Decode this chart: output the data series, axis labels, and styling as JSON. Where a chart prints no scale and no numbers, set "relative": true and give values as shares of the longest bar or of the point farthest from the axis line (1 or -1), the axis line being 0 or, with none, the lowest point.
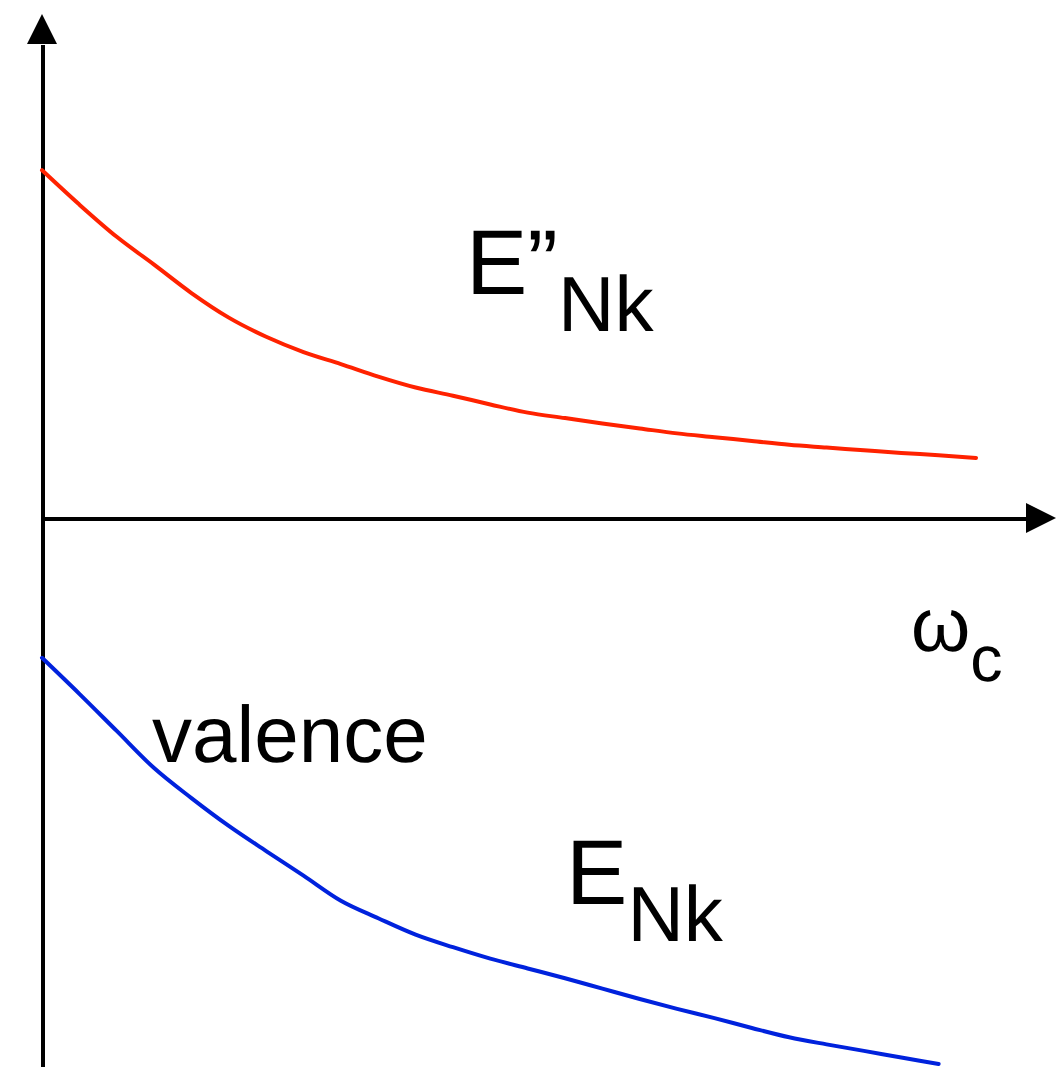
{
  "chart_data": {
    "type": "line",
    "relative": true,
    "xlabel": "ω$_{c}$",
    "categories": [
      null,
      null,
      null,
      null,
      null,
      null,
      null,
      null,
      null,
      null,
      null,
      null,
      null,
      null,
      null,
      null,
      null,
      null,
      null,
      null,
      null,
      null,
      null,
      null,
      null,
      null
    ],
    "series": [
      {
        "name": "E”$_{Nk}$",
        "color": "#ff2200",
        "values": [
          0.637,
          0.574,
          0.515,
          0.464,
          0.412,
          0.367,
          0.332,
          0.304,
          0.282,
          0.259,
          0.239,
          0.224,
          0.208,
          0.193,
          0.183,
          0.173,
          0.164,
          0.155,
          0.148,
          0.141,
          0.134,
          0.129,
          0.124,
          0.119,
          0.115,
          0.11
        ]
      },
      {
        "name": "E$_{Nk}$",
        "color": "#0022dd",
        "values": [
          -0.256,
          -0.322,
          -0.39,
          -0.458,
          -0.513,
          -0.564,
          -0.61,
          -0.655,
          -0.701,
          -0.733,
          -0.763,
          -0.786,
          -0.807,
          -0.825,
          -0.843,
          -0.862,
          -0.881,
          -0.899,
          -0.916,
          -0.934,
          -0.951,
          -0.964,
          -0.976,
          -0.988,
          -1,
          null
        ]
      }
    ],
    "annotations": [
      "valence"
    ],
    "legend": false,
    "grid": false,
    "marker": "none"
  }
}
